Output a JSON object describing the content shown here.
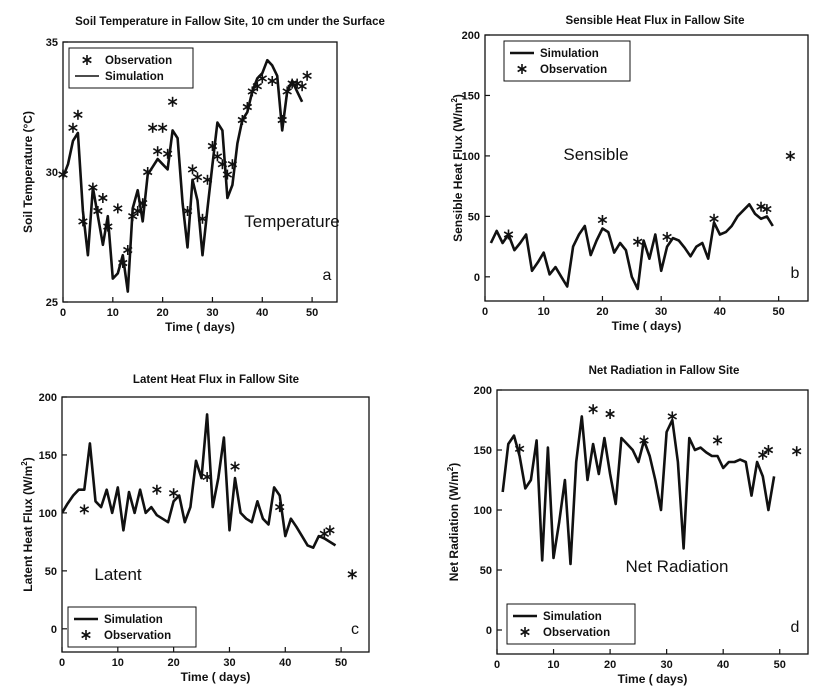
{
  "chart_data": [
    {
      "type": "line",
      "panel": "a",
      "title": "Soil Temperature in Fallow Site, 10 cm under the Surface",
      "xlabel": "Time ( days)",
      "ylabel": "Soil Temperature (°C)",
      "xlim": [
        0,
        55
      ],
      "ylim": [
        25,
        35
      ],
      "xticks": [
        0,
        10,
        20,
        30,
        40,
        50
      ],
      "yticks": [
        25,
        30,
        35
      ],
      "annotation": "Temperature",
      "panel_letter": "a",
      "grid": false,
      "legend_position": "top-left",
      "legend_order": [
        "Observation",
        "Simulation"
      ],
      "series": [
        {
          "name": "Simulation",
          "style": "line",
          "x": [
            0,
            1,
            2,
            3,
            4,
            5,
            6,
            7,
            8,
            9,
            10,
            11,
            12,
            13,
            14,
            15,
            16,
            17,
            18,
            19,
            20,
            21,
            22,
            23,
            24,
            25,
            26,
            27,
            28,
            29,
            30,
            31,
            32,
            33,
            34,
            35,
            36,
            37,
            38,
            39,
            40,
            41,
            42,
            43,
            44,
            45,
            46,
            47,
            48
          ],
          "y": [
            29.8,
            30.3,
            31.2,
            31.5,
            28.5,
            26.8,
            29.4,
            28.3,
            27.2,
            28.3,
            25.9,
            26.1,
            26.8,
            25.4,
            28.6,
            29.3,
            28.1,
            29.9,
            30.2,
            30.5,
            30.3,
            30.1,
            31.6,
            31.3,
            28.8,
            27.1,
            29.7,
            28.9,
            26.8,
            28.6,
            30.3,
            31.9,
            31.6,
            29.0,
            29.5,
            31.1,
            32.0,
            32.3,
            33.1,
            33.6,
            33.8,
            34.3,
            34.1,
            33.7,
            31.6,
            33.1,
            33.5,
            33.1,
            32.7
          ]
        },
        {
          "name": "Observation",
          "style": "marker",
          "x": [
            0,
            2,
            3,
            4,
            6,
            7,
            8,
            9,
            11,
            12,
            13,
            14,
            15,
            16,
            17,
            18,
            19,
            20,
            21,
            22,
            25,
            26,
            27,
            28,
            29,
            30,
            31,
            32,
            33,
            34,
            36,
            37,
            38,
            39,
            40,
            42,
            44,
            45,
            46,
            47,
            48,
            49
          ],
          "y": [
            29.9,
            31.7,
            32.2,
            28.1,
            29.4,
            28.5,
            29.0,
            27.9,
            28.6,
            26.5,
            27.0,
            28.3,
            28.5,
            28.8,
            30.0,
            31.7,
            30.8,
            31.7,
            30.7,
            32.7,
            28.5,
            30.1,
            29.8,
            28.2,
            29.7,
            31.0,
            30.6,
            30.3,
            29.9,
            30.3,
            32.0,
            32.5,
            33.1,
            33.3,
            33.6,
            33.5,
            32.0,
            33.1,
            33.4,
            33.4,
            33.3,
            33.7
          ]
        }
      ]
    },
    {
      "type": "line",
      "panel": "b",
      "title": "Sensible Heat Flux in Fallow Site",
      "xlabel": "Time ( days)",
      "ylabel": "Sensible Heat Flux (W/m²)",
      "ylabel_main": "Sensible Heat Flux (W/m",
      "ylabel_sup": "2",
      "ylabel_end": ")",
      "xlim": [
        0,
        55
      ],
      "ylim": [
        -20,
        200
      ],
      "xticks": [
        0,
        10,
        20,
        30,
        40,
        50
      ],
      "yticks": [
        0,
        50,
        100,
        150,
        200
      ],
      "annotation": "Sensible",
      "panel_letter": "b",
      "grid": false,
      "legend_position": "top-left",
      "legend_order": [
        "Simulation",
        "Observation"
      ],
      "series": [
        {
          "name": "Simulation",
          "style": "line",
          "x": [
            1,
            2,
            3,
            4,
            5,
            6,
            7,
            8,
            9,
            10,
            11,
            12,
            13,
            14,
            15,
            16,
            17,
            18,
            19,
            20,
            21,
            22,
            23,
            24,
            25,
            26,
            27,
            28,
            29,
            30,
            31,
            32,
            33,
            34,
            35,
            36,
            37,
            38,
            39,
            40,
            41,
            42,
            43,
            44,
            45,
            46,
            47,
            48,
            49
          ],
          "y": [
            28,
            38,
            28,
            35,
            22,
            28,
            35,
            5,
            12,
            20,
            2,
            8,
            0,
            -8,
            25,
            35,
            42,
            18,
            30,
            40,
            37,
            20,
            28,
            22,
            0,
            -10,
            30,
            15,
            35,
            5,
            25,
            32,
            30,
            24,
            17,
            25,
            28,
            15,
            45,
            35,
            37,
            42,
            50,
            55,
            60,
            52,
            48,
            50,
            42
          ]
        },
        {
          "name": "Observation",
          "style": "marker",
          "x": [
            4,
            20,
            26,
            31,
            39,
            47,
            48,
            52
          ],
          "y": [
            35,
            47,
            29,
            33,
            48,
            58,
            56,
            100
          ]
        }
      ]
    },
    {
      "type": "line",
      "panel": "c",
      "title": "Latent Heat Flux in Fallow Site",
      "xlabel": "Time ( days)",
      "ylabel": "Latent Heat Flux (W/m²)",
      "ylabel_main": "Latent Heat Flux (W/m",
      "ylabel_sup": "2",
      "ylabel_end": ")",
      "xlim": [
        0,
        55
      ],
      "ylim": [
        -20,
        200
      ],
      "xticks": [
        0,
        10,
        20,
        30,
        40,
        50
      ],
      "yticks": [
        0,
        50,
        100,
        150,
        200
      ],
      "annotation": "Latent",
      "panel_letter": "c",
      "grid": false,
      "legend_position": "bottom-left",
      "legend_order": [
        "Simulation",
        "Observation"
      ],
      "series": [
        {
          "name": "Simulation",
          "style": "line",
          "x": [
            0,
            1,
            2,
            3,
            4,
            5,
            6,
            7,
            8,
            9,
            10,
            11,
            12,
            13,
            14,
            15,
            16,
            17,
            18,
            19,
            20,
            21,
            22,
            23,
            24,
            25,
            26,
            27,
            28,
            29,
            30,
            31,
            32,
            33,
            34,
            35,
            36,
            37,
            38,
            39,
            40,
            41,
            42,
            43,
            44,
            45,
            46,
            47,
            48,
            49
          ],
          "y": [
            100,
            108,
            115,
            120,
            120,
            160,
            110,
            105,
            120,
            100,
            122,
            85,
            118,
            100,
            120,
            100,
            105,
            98,
            95,
            92,
            110,
            115,
            92,
            105,
            145,
            130,
            185,
            105,
            130,
            165,
            85,
            130,
            100,
            95,
            92,
            110,
            95,
            90,
            122,
            115,
            80,
            95,
            88,
            80,
            72,
            70,
            80,
            78,
            75,
            72
          ]
        },
        {
          "name": "Observation",
          "style": "marker",
          "x": [
            4,
            17,
            20,
            26,
            31,
            39,
            47,
            48,
            52
          ],
          "y": [
            103,
            120,
            117,
            131,
            140,
            105,
            82,
            85,
            47
          ]
        }
      ]
    },
    {
      "type": "line",
      "panel": "d",
      "title": "Net Radiation in Fallow Site",
      "xlabel": "Time ( days)",
      "ylabel": "Net Radiation (W/m²)",
      "ylabel_main": "Net Radiation (W/m",
      "ylabel_sup": "2",
      "ylabel_end": ")",
      "xlim": [
        0,
        55
      ],
      "ylim": [
        -20,
        200
      ],
      "xticks": [
        0,
        10,
        20,
        30,
        40,
        50
      ],
      "yticks": [
        0,
        50,
        100,
        150,
        200
      ],
      "annotation": "Net Radiation",
      "panel_letter": "d",
      "grid": false,
      "legend_position": "bottom-left",
      "legend_order": [
        "Simulation",
        "Observation"
      ],
      "series": [
        {
          "name": "Simulation",
          "style": "line",
          "x": [
            1,
            2,
            3,
            4,
            5,
            6,
            7,
            8,
            9,
            10,
            11,
            12,
            13,
            14,
            15,
            16,
            17,
            18,
            19,
            20,
            21,
            22,
            23,
            24,
            25,
            26,
            27,
            28,
            29,
            30,
            31,
            32,
            33,
            34,
            35,
            36,
            37,
            38,
            39,
            40,
            41,
            42,
            43,
            44,
            45,
            46,
            47,
            48,
            49
          ],
          "y": [
            115,
            155,
            162,
            145,
            118,
            125,
            158,
            58,
            152,
            60,
            90,
            125,
            55,
            140,
            178,
            125,
            155,
            130,
            160,
            130,
            105,
            160,
            155,
            150,
            140,
            158,
            145,
            125,
            100,
            165,
            175,
            140,
            68,
            160,
            150,
            152,
            148,
            145,
            145,
            135,
            140,
            140,
            142,
            140,
            112,
            140,
            128,
            100,
            128
          ]
        },
        {
          "name": "Observation",
          "style": "marker",
          "x": [
            4,
            17,
            20,
            26,
            31,
            39,
            47,
            48,
            53
          ],
          "y": [
            151,
            184,
            180,
            158,
            178,
            158,
            146,
            150,
            149
          ]
        }
      ]
    }
  ]
}
